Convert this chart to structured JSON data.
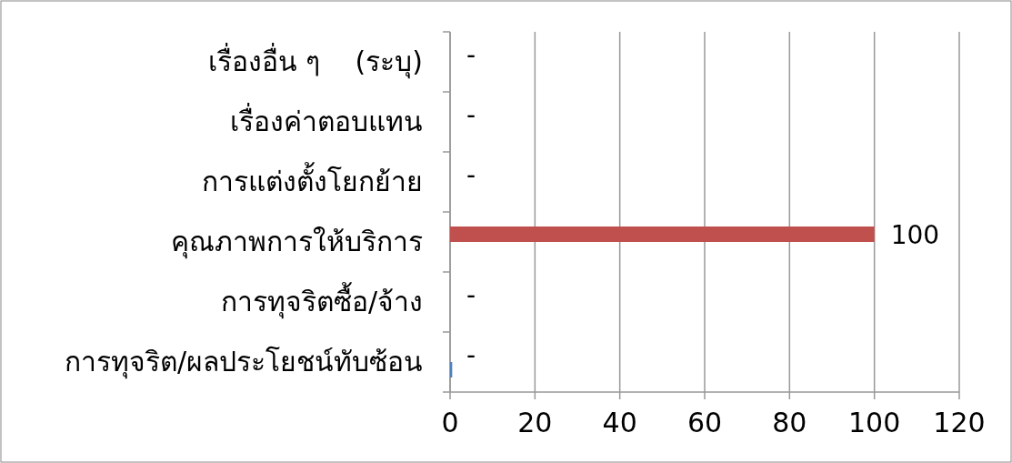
{
  "chart_data": {
    "type": "bar",
    "orientation": "horizontal",
    "categories": [
      "เรื่องอื่น ๆ    (ระบุ)",
      "เรื่องค่าตอบแทน",
      "การแต่งตั้งโยกย้าย",
      "คุณภาพการให้บริการ",
      "การทุจริตซื้อ/จ้าง",
      "การทุจริต/ผลประโยชน์ทับซ้อน"
    ],
    "series": [
      {
        "color": "#4f81bd",
        "values": [
          0,
          0,
          0,
          0,
          0,
          0.5
        ]
      },
      {
        "color": "#c0504d",
        "values": [
          0,
          0,
          0,
          100,
          0,
          0
        ],
        "value_labels": [
          "-",
          "-",
          "-",
          "100",
          "-",
          "-"
        ]
      }
    ],
    "xlim": [
      0,
      120
    ],
    "xticks": [
      0,
      20,
      40,
      60,
      80,
      100,
      120
    ],
    "grid": "x"
  }
}
